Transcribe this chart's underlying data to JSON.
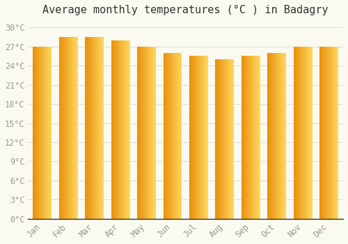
{
  "title": "Average monthly temperatures (°C ) in Badagry",
  "months": [
    "Jan",
    "Feb",
    "Mar",
    "Apr",
    "May",
    "Jun",
    "Jul",
    "Aug",
    "Sep",
    "Oct",
    "Nov",
    "Dec"
  ],
  "values": [
    27,
    28.5,
    28.5,
    28,
    27,
    26,
    25.5,
    25,
    25.5,
    26,
    27,
    27
  ],
  "bar_color_left": "#E8900A",
  "bar_color_right": "#FFD860",
  "background_color": "#FAFAF0",
  "grid_color": "#DDDDDD",
  "text_color": "#999999",
  "ylim": [
    0,
    31
  ],
  "yticks": [
    0,
    3,
    6,
    9,
    12,
    15,
    18,
    21,
    24,
    27,
    30
  ],
  "ytick_labels": [
    "0°C",
    "3°C",
    "6°C",
    "9°C",
    "12°C",
    "15°C",
    "18°C",
    "21°C",
    "24°C",
    "27°C",
    "30°C"
  ],
  "title_fontsize": 11,
  "tick_fontsize": 8.5,
  "bar_width": 0.72
}
